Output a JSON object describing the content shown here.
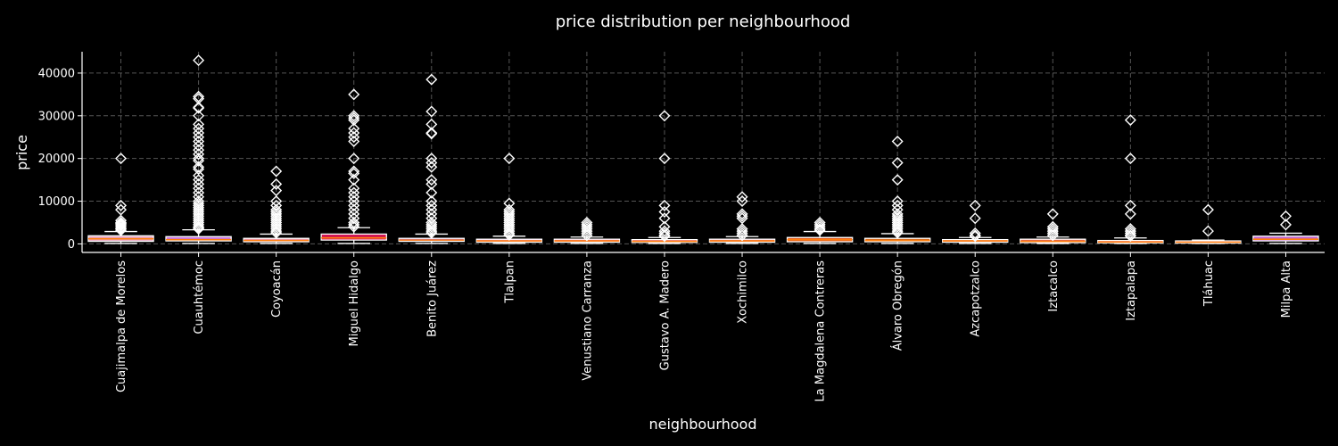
{
  "chart_data": {
    "type": "box",
    "title": "price distribution per neighbourhood",
    "xlabel": "neighbourhood",
    "ylabel": "price",
    "ylim": [
      -2000,
      45000
    ],
    "yticks": [
      0,
      10000,
      20000,
      30000,
      40000
    ],
    "grid": true,
    "colors": {
      "background": "#000000",
      "grid": "#555555",
      "axis": "#ffffff",
      "median": "#ff7f0e",
      "box_stroke": "#ffffff",
      "flier_stroke": "#ffffff"
    },
    "categories": [
      "Cuajimalpa de Morelos",
      "Cuauhtémoc",
      "Coyoacán",
      "Miguel Hidalgo",
      "Benito Juárez",
      "Tlalpan",
      "Venustiano Carranza",
      "Gustavo A. Madero",
      "Xochimilco",
      "La Magdalena Contreras",
      "Álvaro Obregón",
      "Azcapotzalco",
      "Iztacalco",
      "Iztapalapa",
      "Tláhuac",
      "Milpa Alta"
    ],
    "boxes": [
      {
        "category": "Cuajimalpa de Morelos",
        "fill": "#e8a7c4",
        "whislo": 100,
        "q1": 600,
        "med": 1200,
        "q3": 1900,
        "whishi": 2900,
        "fliers": [
          20000,
          9000,
          8000,
          5500,
          5000,
          4800,
          4500,
          4200,
          3800,
          3500,
          3200
        ]
      },
      {
        "category": "Cuauhtémoc",
        "fill": "#c978e8",
        "whislo": 100,
        "q1": 700,
        "med": 1000,
        "q3": 1700,
        "whishi": 3300,
        "fliers": [
          43000,
          34500,
          34000,
          32000,
          31800,
          30000,
          28000,
          27000,
          26000,
          25000,
          24000,
          23000,
          22000,
          21000,
          20000,
          19500,
          18000,
          17500,
          16000,
          15000,
          14000,
          13000,
          12000,
          11000,
          10000,
          9500,
          9000,
          8500,
          8000,
          7500,
          7000,
          6500,
          6000,
          5500,
          5000,
          4500,
          4000,
          3800,
          3500
        ]
      },
      {
        "category": "Coyoacán",
        "fill": "#f0a0c8",
        "whislo": 100,
        "q1": 500,
        "med": 800,
        "q3": 1300,
        "whishi": 2300,
        "fliers": [
          17000,
          14000,
          12500,
          10000,
          9000,
          8000,
          7500,
          7000,
          6500,
          6000,
          5500,
          5000,
          4500,
          4000,
          3500,
          3000,
          2600
        ]
      },
      {
        "category": "Miguel Hidalgo",
        "fill": "#d01050",
        "whislo": 100,
        "q1": 900,
        "med": 1400,
        "q3": 2300,
        "whishi": 3800,
        "fliers": [
          35000,
          30000,
          29500,
          29000,
          27000,
          26000,
          25000,
          24000,
          20000,
          17000,
          16500,
          15000,
          13000,
          12000,
          11000,
          10000,
          9000,
          8000,
          7000,
          6000,
          5000,
          4500,
          4000
        ]
      },
      {
        "category": "Benito Juárez",
        "fill": "#b070e0",
        "whislo": 100,
        "q1": 600,
        "med": 900,
        "q3": 1300,
        "whishi": 2300,
        "fliers": [
          38500,
          31000,
          28000,
          26000,
          25800,
          20000,
          19000,
          18000,
          15000,
          14000,
          12000,
          10000,
          9000,
          8000,
          7000,
          6000,
          5000,
          4500,
          4000,
          3500,
          3000,
          2600
        ]
      },
      {
        "category": "Tlalpan",
        "fill": "#e890d0",
        "whislo": 100,
        "q1": 400,
        "med": 700,
        "q3": 1100,
        "whishi": 1800,
        "fliers": [
          20000,
          9500,
          8000,
          7500,
          7000,
          6500,
          6000,
          5500,
          5000,
          4500,
          4000,
          3500,
          3000,
          2500,
          2100
        ]
      },
      {
        "category": "Venustiano Carranza",
        "fill": "#e86890",
        "whislo": 100,
        "q1": 400,
        "med": 700,
        "q3": 1100,
        "whishi": 1600,
        "fliers": [
          5000,
          4500,
          4000,
          3500,
          3000,
          2500,
          2000
        ]
      },
      {
        "category": "Gustavo A. Madero",
        "fill": "#e0405a",
        "whislo": 100,
        "q1": 350,
        "med": 600,
        "q3": 1000,
        "whishi": 1500,
        "fliers": [
          30000,
          20000,
          9000,
          7500,
          6000,
          4000,
          3000,
          2500,
          2000,
          1800
        ]
      },
      {
        "category": "Xochimilco",
        "fill": "#e07080",
        "whislo": 100,
        "q1": 400,
        "med": 700,
        "q3": 1100,
        "whishi": 1700,
        "fliers": [
          11000,
          10000,
          7000,
          6500,
          6000,
          3500,
          3000,
          2500,
          2000
        ]
      },
      {
        "category": "La Magdalena Contreras",
        "fill": "#e05a20",
        "whislo": 100,
        "q1": 500,
        "med": 1000,
        "q3": 1500,
        "whishi": 2900,
        "fliers": [
          5000,
          4500,
          4000,
          3500,
          3200
        ]
      },
      {
        "category": "Álvaro Obregón",
        "fill": "#d06820",
        "whislo": 100,
        "q1": 500,
        "med": 800,
        "q3": 1300,
        "whishi": 2400,
        "fliers": [
          24000,
          19000,
          15000,
          10000,
          9000,
          8000,
          7000,
          6500,
          6000,
          5500,
          5000,
          4500,
          4000,
          3500,
          3000,
          2600
        ]
      },
      {
        "category": "Azcapotzalco",
        "fill": "#d04040",
        "whislo": 100,
        "q1": 400,
        "med": 700,
        "q3": 1000,
        "whishi": 1500,
        "fliers": [
          9000,
          6000,
          2500,
          2000,
          1800
        ]
      },
      {
        "category": "Iztacalco",
        "fill": "#e06050",
        "whislo": 100,
        "q1": 300,
        "med": 600,
        "q3": 1100,
        "whishi": 1600,
        "fliers": [
          7000,
          4000,
          3500,
          3000,
          2500,
          2000
        ]
      },
      {
        "category": "Iztapalapa",
        "fill": "#e84050",
        "whislo": 100,
        "q1": 250,
        "med": 450,
        "q3": 800,
        "whishi": 1400,
        "fliers": [
          29000,
          20000,
          9000,
          7000,
          3500,
          3000,
          2500,
          2000,
          1800
        ]
      },
      {
        "category": "Tláhuac",
        "fill": "#e06060",
        "whislo": 100,
        "q1": 200,
        "med": 400,
        "q3": 700,
        "whishi": 900,
        "fliers": [
          8000,
          3000
        ]
      },
      {
        "category": "Milpa Alta",
        "fill": "#c060d0",
        "whislo": 100,
        "q1": 700,
        "med": 1100,
        "q3": 1800,
        "whishi": 2500,
        "fliers": [
          6500,
          4500
        ]
      }
    ]
  }
}
